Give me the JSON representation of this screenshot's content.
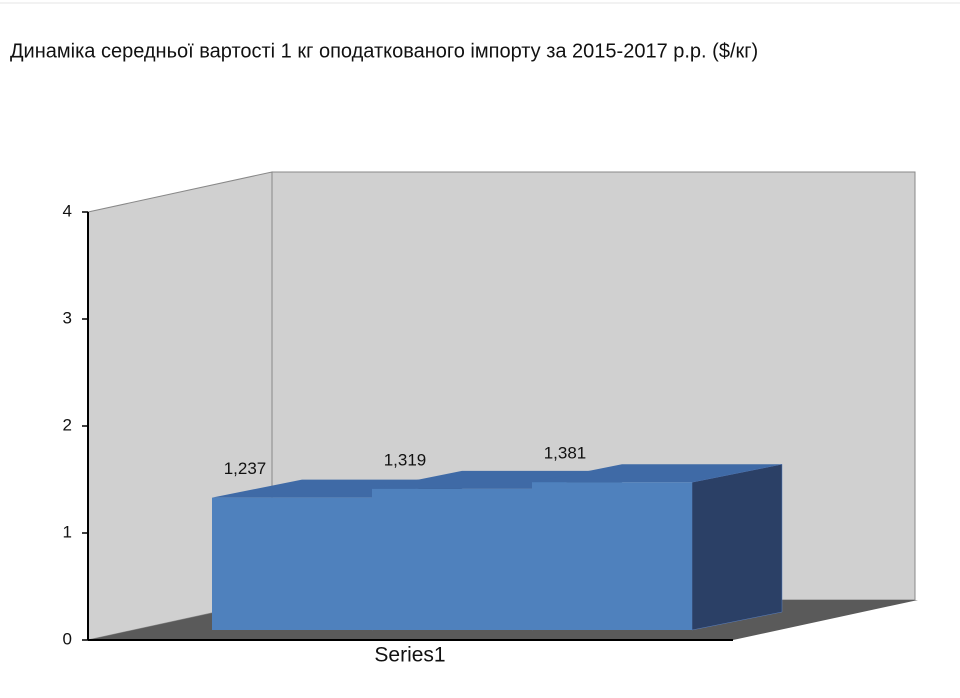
{
  "chart_data": {
    "type": "bar3d",
    "title": "Динаміка середньої вартості 1 кг оподаткованого імпорту за 2015-2017 р.р. ($/кг)",
    "categories": [
      null,
      null,
      null
    ],
    "series": [
      {
        "name": "Series1",
        "color": "#4f81bd",
        "values": [
          1.237,
          1.319,
          1.381
        ],
        "value_labels": [
          "1,237",
          "1,319",
          "1,381"
        ]
      }
    ],
    "ylim": [
      0,
      4
    ],
    "yticks": [
      0,
      1,
      2,
      3,
      4
    ]
  }
}
